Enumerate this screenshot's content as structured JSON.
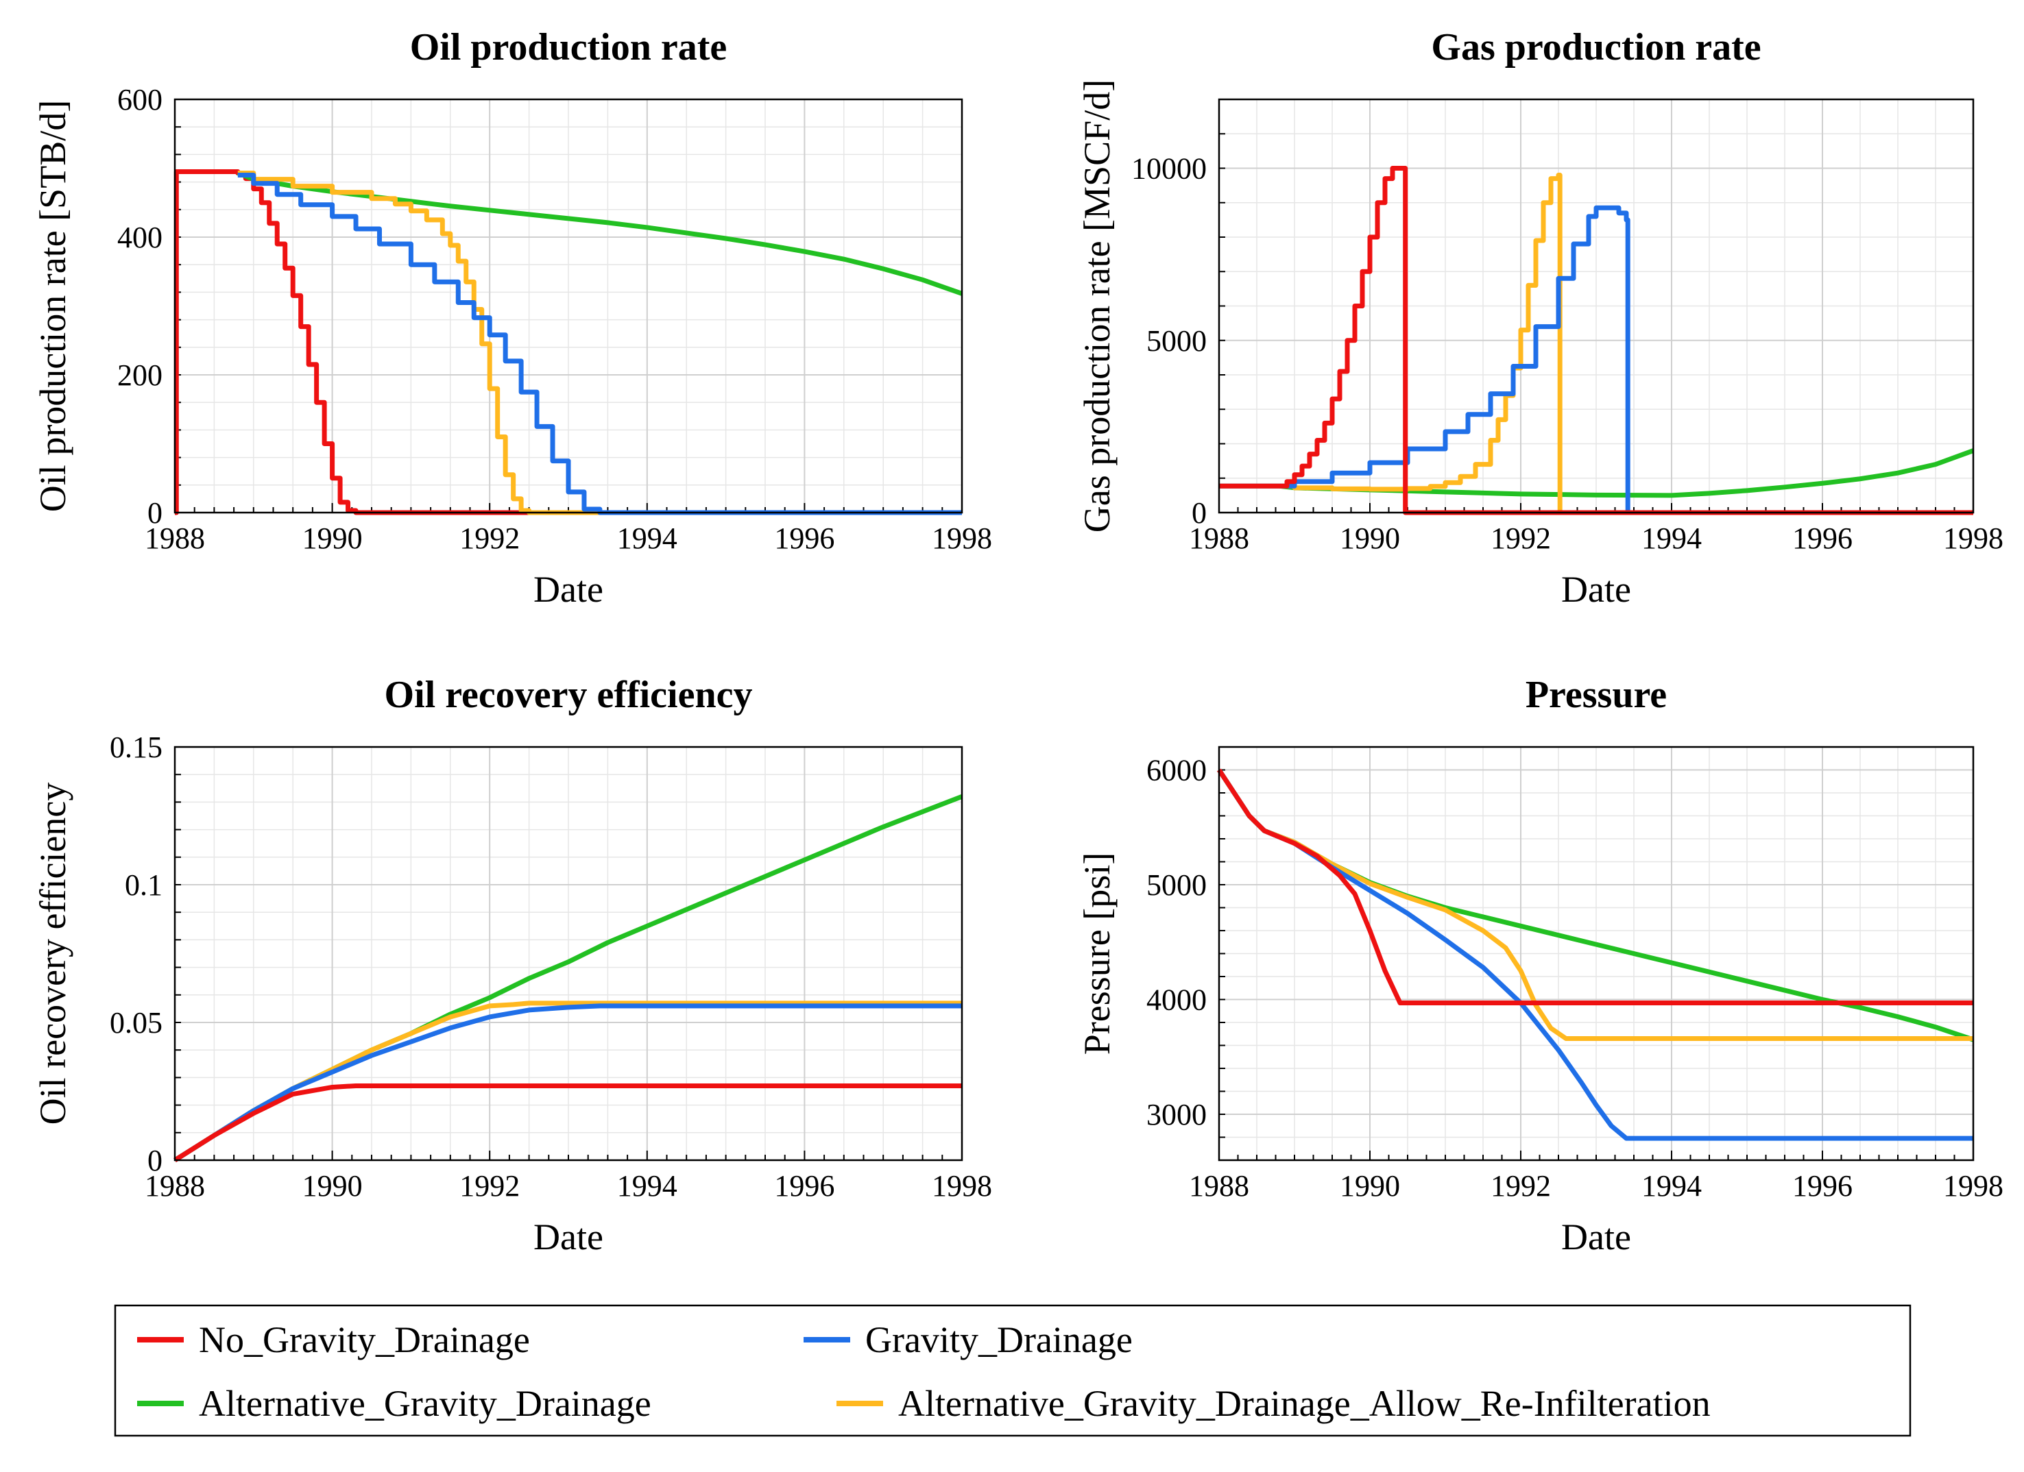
{
  "colors": {
    "No_Gravity_Drainage": "#ee1111",
    "Gravity_Drainage": "#1f6fe8",
    "Alternative_Gravity_Drainage": "#22c022",
    "Alternative_Gravity_Drainage_Allow_Re-Infilteration": "#ffb81f"
  },
  "legend": {
    "items": [
      {
        "name": "No_Gravity_Drainage",
        "label": "No_Gravity_Drainage"
      },
      {
        "name": "Gravity_Drainage",
        "label": "Gravity_Drainage"
      },
      {
        "name": "Alternative_Gravity_Drainage",
        "label": "Alternative_Gravity_Drainage"
      },
      {
        "name": "Alternative_Gravity_Drainage_Allow_Re-Infilteration",
        "label": "Alternative_Gravity_Drainage_Allow_Re-Infilteration"
      }
    ]
  },
  "chart_data": [
    {
      "id": "oil-rate",
      "type": "line",
      "title": "Oil production rate",
      "xlabel": "Date",
      "ylabel": "Oil production rate [STB/d]",
      "xlim": [
        1988,
        1998
      ],
      "ylim": [
        0,
        600
      ],
      "xticks": [
        1988,
        1990,
        1992,
        1994,
        1996,
        1998
      ],
      "xtick_labels": [
        "1988",
        "1990",
        "1992",
        "1994",
        "1996",
        "1998"
      ],
      "yticks": [
        0,
        200,
        400,
        600
      ],
      "ytick_labels": [
        "0",
        "200",
        "400",
        "600"
      ],
      "series": [
        {
          "name": "No_Gravity_Drainage",
          "step": true,
          "x": [
            1988.0,
            1988.02,
            1988.7,
            1988.8,
            1988.9,
            1989.0,
            1989.1,
            1989.2,
            1989.3,
            1989.4,
            1989.5,
            1989.6,
            1989.7,
            1989.8,
            1989.9,
            1990.0,
            1990.1,
            1990.2,
            1990.3,
            1990.4,
            1998.0
          ],
          "y": [
            0,
            495,
            495,
            493,
            485,
            470,
            450,
            420,
            390,
            355,
            315,
            270,
            215,
            160,
            100,
            50,
            15,
            3,
            0,
            0,
            0
          ]
        },
        {
          "name": "Alternative_Gravity_Drainage",
          "step": false,
          "x": [
            1988.8,
            1989.0,
            1989.5,
            1990.0,
            1990.5,
            1991.0,
            1991.5,
            1992.0,
            1992.5,
            1993.0,
            1993.5,
            1994.0,
            1994.5,
            1995.0,
            1995.5,
            1996.0,
            1996.5,
            1997.0,
            1997.5,
            1998.0
          ],
          "y": [
            493,
            484,
            474,
            466,
            459,
            452,
            445,
            439,
            433,
            427,
            421,
            414,
            406,
            398,
            389,
            379,
            368,
            354,
            338,
            318
          ]
        },
        {
          "name": "Alternative_Gravity_Drainage_Allow_Re-Infilteration",
          "step": true,
          "x": [
            1988.8,
            1989.0,
            1989.5,
            1990.0,
            1990.5,
            1990.8,
            1991.0,
            1991.2,
            1991.4,
            1991.5,
            1991.6,
            1991.7,
            1991.8,
            1991.9,
            1992.0,
            1992.1,
            1992.2,
            1992.3,
            1992.4,
            1992.5,
            1998.0
          ],
          "y": [
            493,
            484,
            474,
            465,
            456,
            448,
            438,
            425,
            405,
            388,
            365,
            335,
            295,
            245,
            180,
            110,
            55,
            20,
            3,
            0,
            0
          ]
        },
        {
          "name": "Gravity_Drainage",
          "step": true,
          "x": [
            1988.8,
            1989.0,
            1989.3,
            1989.6,
            1990.0,
            1990.3,
            1990.6,
            1991.0,
            1991.3,
            1991.6,
            1991.8,
            1992.0,
            1992.2,
            1992.4,
            1992.6,
            1992.8,
            1993.0,
            1993.2,
            1993.4,
            1998.0
          ],
          "y": [
            490,
            478,
            462,
            447,
            430,
            412,
            390,
            360,
            335,
            305,
            283,
            258,
            220,
            175,
            125,
            75,
            30,
            5,
            0,
            0
          ]
        }
      ]
    },
    {
      "id": "gas-rate",
      "type": "line",
      "title": "Gas production rate",
      "xlabel": "Date",
      "ylabel": "Gas production rate [MSCF/d]",
      "xlim": [
        1988,
        1998
      ],
      "ylim": [
        0,
        12000
      ],
      "xticks": [
        1988,
        1990,
        1992,
        1994,
        1996,
        1998
      ],
      "xtick_labels": [
        "1988",
        "1990",
        "1992",
        "1994",
        "1996",
        "1998"
      ],
      "yticks": [
        0,
        5000,
        10000
      ],
      "ytick_labels": [
        "0",
        "5000",
        "10000"
      ],
      "series": [
        {
          "name": "Alternative_Gravity_Drainage",
          "step": false,
          "x": [
            1988.8,
            1989.0,
            1990.0,
            1991.0,
            1992.0,
            1993.0,
            1994.0,
            1994.5,
            1995.0,
            1995.5,
            1996.0,
            1996.5,
            1997.0,
            1997.5,
            1998.0
          ],
          "y": [
            770,
            720,
            660,
            600,
            540,
            510,
            500,
            560,
            640,
            740,
            850,
            980,
            1150,
            1400,
            1800
          ]
        },
        {
          "name": "Alternative_Gravity_Drainage_Allow_Re-Infilteration",
          "step": true,
          "x": [
            1988.0,
            1988.8,
            1989.0,
            1989.5,
            1990.0,
            1990.5,
            1990.8,
            1991.0,
            1991.2,
            1991.4,
            1991.6,
            1991.7,
            1991.8,
            1991.9,
            1992.0,
            1992.1,
            1992.2,
            1992.3,
            1992.4,
            1992.5,
            1992.52,
            1998.0
          ],
          "y": [
            770,
            770,
            720,
            690,
            680,
            700,
            760,
            870,
            1050,
            1400,
            2100,
            2700,
            3400,
            4200,
            5300,
            6600,
            7900,
            9000,
            9700,
            9800,
            0,
            0
          ]
        },
        {
          "name": "Gravity_Drainage",
          "step": true,
          "x": [
            1988.0,
            1988.8,
            1989.0,
            1989.5,
            1990.0,
            1990.5,
            1991.0,
            1991.3,
            1991.6,
            1991.9,
            1992.2,
            1992.5,
            1992.7,
            1992.9,
            1993.0,
            1993.2,
            1993.3,
            1993.4,
            1993.42,
            1998.0
          ],
          "y": [
            770,
            770,
            900,
            1150,
            1450,
            1850,
            2350,
            2850,
            3450,
            4250,
            5400,
            6800,
            7800,
            8600,
            8850,
            8850,
            8700,
            8500,
            0,
            0
          ]
        },
        {
          "name": "No_Gravity_Drainage",
          "step": true,
          "x": [
            1988.0,
            1988.8,
            1988.9,
            1989.0,
            1989.1,
            1989.2,
            1989.3,
            1989.4,
            1989.5,
            1989.6,
            1989.7,
            1989.8,
            1989.9,
            1990.0,
            1990.1,
            1990.2,
            1990.3,
            1990.45,
            1990.47,
            1998.0
          ],
          "y": [
            770,
            770,
            900,
            1100,
            1350,
            1700,
            2100,
            2600,
            3300,
            4100,
            5000,
            6000,
            7000,
            8000,
            9000,
            9700,
            10000,
            10000,
            0,
            0
          ]
        }
      ]
    },
    {
      "id": "oil-recovery",
      "type": "line",
      "title": "Oil recovery efficiency",
      "xlabel": "Date",
      "ylabel": "Oil recovery efficiency",
      "xlim": [
        1988,
        1998
      ],
      "ylim": [
        0,
        0.15
      ],
      "xticks": [
        1988,
        1990,
        1992,
        1994,
        1996,
        1998
      ],
      "xtick_labels": [
        "1988",
        "1990",
        "1992",
        "1994",
        "1996",
        "1998"
      ],
      "yticks": [
        0,
        0.05,
        0.1,
        0.15
      ],
      "ytick_labels": [
        "0",
        "0.05",
        "0.1",
        "0.15"
      ],
      "series": [
        {
          "name": "Alternative_Gravity_Drainage",
          "step": false,
          "x": [
            1988.0,
            1988.5,
            1989.0,
            1989.5,
            1990.0,
            1990.5,
            1991.0,
            1991.5,
            1992.0,
            1992.5,
            1993.0,
            1993.5,
            1994.0,
            1995.0,
            1996.0,
            1997.0,
            1998.0
          ],
          "y": [
            0,
            0.009,
            0.018,
            0.026,
            0.033,
            0.04,
            0.046,
            0.053,
            0.059,
            0.066,
            0.072,
            0.079,
            0.085,
            0.097,
            0.109,
            0.121,
            0.132
          ]
        },
        {
          "name": "Alternative_Gravity_Drainage_Allow_Re-Infilteration",
          "step": false,
          "x": [
            1988.0,
            1988.5,
            1989.0,
            1989.5,
            1990.0,
            1990.5,
            1991.0,
            1991.5,
            1992.0,
            1992.3,
            1992.5,
            1993.0,
            1998.0
          ],
          "y": [
            0,
            0.009,
            0.018,
            0.026,
            0.033,
            0.04,
            0.046,
            0.052,
            0.056,
            0.0565,
            0.057,
            0.057,
            0.057
          ]
        },
        {
          "name": "Gravity_Drainage",
          "step": false,
          "x": [
            1988.0,
            1988.5,
            1989.0,
            1989.5,
            1990.0,
            1990.5,
            1991.0,
            1991.5,
            1992.0,
            1992.5,
            1993.0,
            1993.4,
            1998.0
          ],
          "y": [
            0,
            0.009,
            0.018,
            0.026,
            0.032,
            0.038,
            0.043,
            0.048,
            0.052,
            0.0545,
            0.0555,
            0.056,
            0.056
          ]
        },
        {
          "name": "No_Gravity_Drainage",
          "step": false,
          "x": [
            1988.0,
            1988.5,
            1989.0,
            1989.5,
            1990.0,
            1990.3,
            1990.5,
            1998.0
          ],
          "y": [
            0,
            0.009,
            0.017,
            0.024,
            0.0265,
            0.027,
            0.027,
            0.027
          ]
        }
      ]
    },
    {
      "id": "pressure",
      "type": "line",
      "title": "Pressure",
      "xlabel": "Date",
      "ylabel": "Pressure [psi]",
      "xlim": [
        1988,
        1998
      ],
      "ylim": [
        2600,
        6200
      ],
      "xticks": [
        1988,
        1990,
        1992,
        1994,
        1996,
        1998
      ],
      "xtick_labels": [
        "1988",
        "1990",
        "1992",
        "1994",
        "1996",
        "1998"
      ],
      "yticks": [
        3000,
        4000,
        5000,
        6000
      ],
      "ytick_labels": [
        "3000",
        "4000",
        "5000",
        "6000"
      ],
      "series": [
        {
          "name": "Alternative_Gravity_Drainage",
          "step": false,
          "x": [
            1988.0,
            1988.2,
            1988.4,
            1988.6,
            1989.0,
            1989.5,
            1990.0,
            1990.5,
            1991.0,
            1991.5,
            1992.0,
            1993.0,
            1994.0,
            1995.0,
            1996.0,
            1996.5,
            1997.0,
            1997.5,
            1998.0
          ],
          "y": [
            6000,
            5800,
            5600,
            5470,
            5370,
            5180,
            5020,
            4900,
            4800,
            4720,
            4640,
            4480,
            4320,
            4160,
            4000,
            3930,
            3850,
            3760,
            3650
          ]
        },
        {
          "name": "Alternative_Gravity_Drainage_Allow_Re-Infilteration",
          "step": false,
          "x": [
            1988.0,
            1988.2,
            1988.4,
            1988.6,
            1989.0,
            1989.5,
            1990.0,
            1990.5,
            1991.0,
            1991.5,
            1991.8,
            1992.0,
            1992.2,
            1992.4,
            1992.6,
            1993.0,
            1998.0
          ],
          "y": [
            6000,
            5800,
            5600,
            5470,
            5370,
            5180,
            5010,
            4890,
            4780,
            4600,
            4450,
            4250,
            3950,
            3750,
            3660,
            3660,
            3660
          ]
        },
        {
          "name": "Gravity_Drainage",
          "step": false,
          "x": [
            1988.0,
            1988.2,
            1988.4,
            1988.6,
            1989.0,
            1989.5,
            1990.0,
            1990.5,
            1991.0,
            1991.5,
            1992.0,
            1992.5,
            1992.8,
            1993.0,
            1993.2,
            1993.4,
            1998.0
          ],
          "y": [
            6000,
            5800,
            5600,
            5470,
            5360,
            5150,
            4950,
            4750,
            4520,
            4280,
            3970,
            3560,
            3280,
            3080,
            2900,
            2790,
            2790
          ]
        },
        {
          "name": "No_Gravity_Drainage",
          "step": false,
          "x": [
            1988.0,
            1988.2,
            1988.4,
            1988.6,
            1989.0,
            1989.3,
            1989.6,
            1989.8,
            1990.0,
            1990.2,
            1990.4,
            1990.5,
            1998.0
          ],
          "y": [
            6000,
            5800,
            5600,
            5470,
            5360,
            5250,
            5080,
            4920,
            4600,
            4250,
            3970,
            3970,
            3970
          ]
        }
      ]
    }
  ]
}
